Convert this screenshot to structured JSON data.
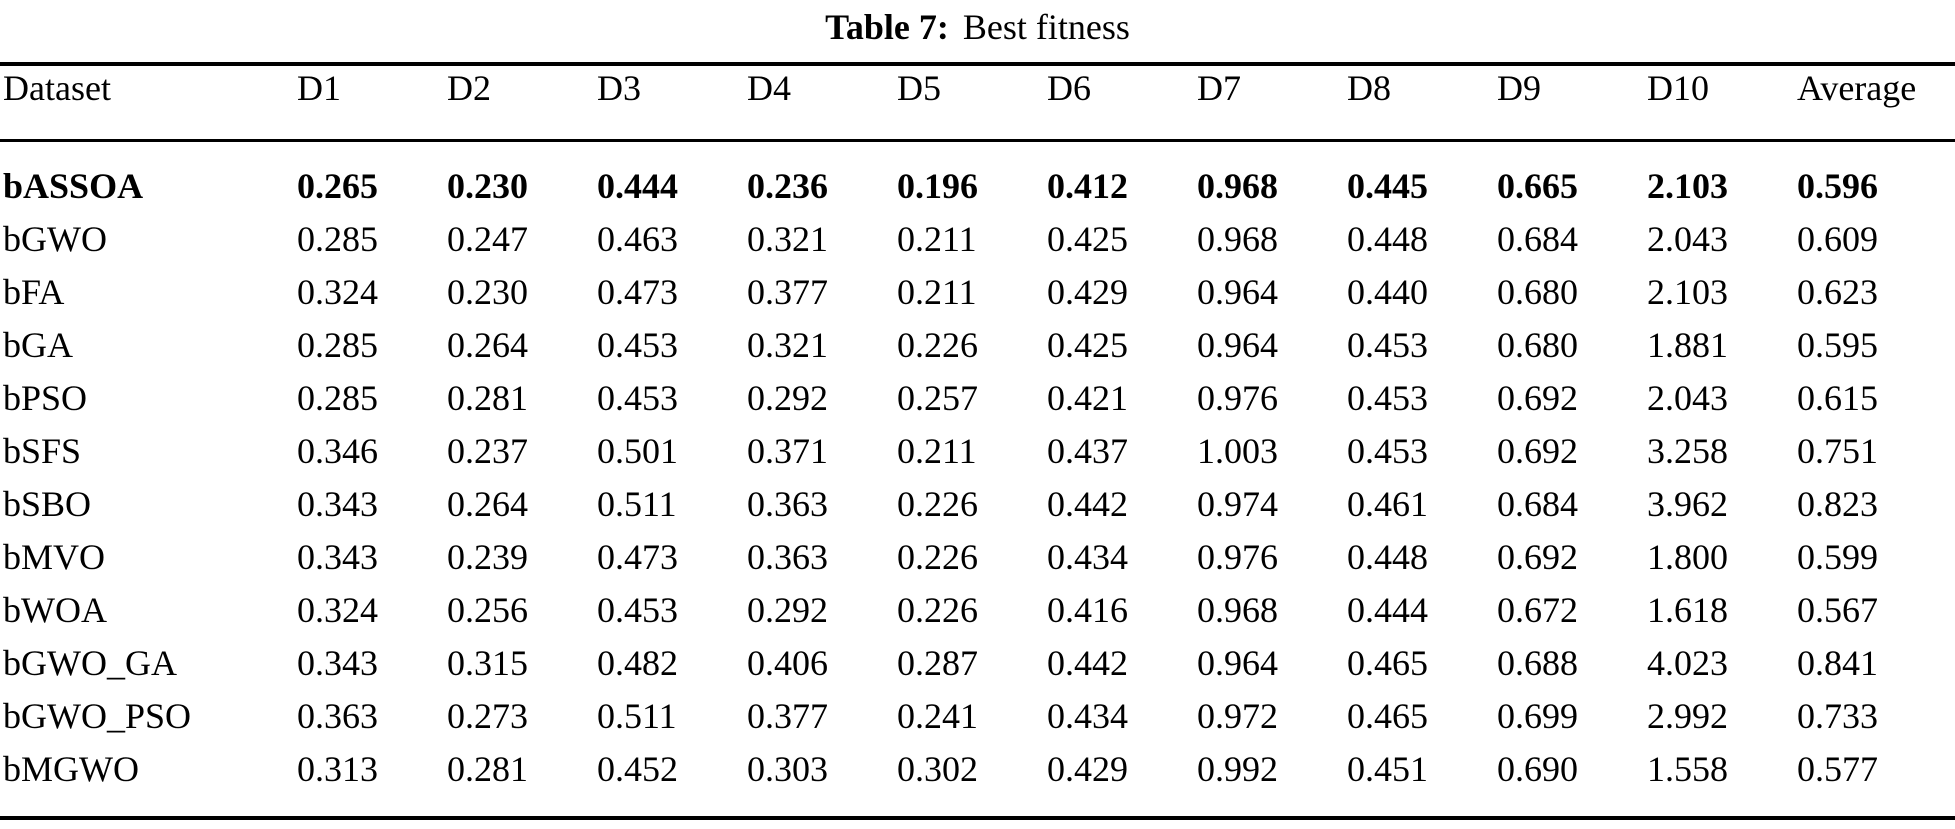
{
  "caption": {
    "label": "Table 7:",
    "text": "Best fitness"
  },
  "colors": {
    "background": "#ffffff",
    "text": "#000000",
    "rule": "#000000"
  },
  "chart_data": {
    "type": "table",
    "title": "Table 7: Best fitness",
    "columns": [
      "Dataset",
      "D1",
      "D2",
      "D3",
      "D4",
      "D5",
      "D6",
      "D7",
      "D8",
      "D9",
      "D10",
      "Average"
    ],
    "rows": [
      {
        "dataset": "bASSOA",
        "bold": true,
        "values": [
          "0.265",
          "0.230",
          "0.444",
          "0.236",
          "0.196",
          "0.412",
          "0.968",
          "0.445",
          "0.665",
          "2.103",
          "0.596"
        ]
      },
      {
        "dataset": "bGWO",
        "bold": false,
        "values": [
          "0.285",
          "0.247",
          "0.463",
          "0.321",
          "0.211",
          "0.425",
          "0.968",
          "0.448",
          "0.684",
          "2.043",
          "0.609"
        ]
      },
      {
        "dataset": "bFA",
        "bold": false,
        "values": [
          "0.324",
          "0.230",
          "0.473",
          "0.377",
          "0.211",
          "0.429",
          "0.964",
          "0.440",
          "0.680",
          "2.103",
          "0.623"
        ]
      },
      {
        "dataset": "bGA",
        "bold": false,
        "values": [
          "0.285",
          "0.264",
          "0.453",
          "0.321",
          "0.226",
          "0.425",
          "0.964",
          "0.453",
          "0.680",
          "1.881",
          "0.595"
        ]
      },
      {
        "dataset": "bPSO",
        "bold": false,
        "values": [
          "0.285",
          "0.281",
          "0.453",
          "0.292",
          "0.257",
          "0.421",
          "0.976",
          "0.453",
          "0.692",
          "2.043",
          "0.615"
        ]
      },
      {
        "dataset": "bSFS",
        "bold": false,
        "values": [
          "0.346",
          "0.237",
          "0.501",
          "0.371",
          "0.211",
          "0.437",
          "1.003",
          "0.453",
          "0.692",
          "3.258",
          "0.751"
        ]
      },
      {
        "dataset": "bSBO",
        "bold": false,
        "values": [
          "0.343",
          "0.264",
          "0.511",
          "0.363",
          "0.226",
          "0.442",
          "0.974",
          "0.461",
          "0.684",
          "3.962",
          "0.823"
        ]
      },
      {
        "dataset": "bMVO",
        "bold": false,
        "values": [
          "0.343",
          "0.239",
          "0.473",
          "0.363",
          "0.226",
          "0.434",
          "0.976",
          "0.448",
          "0.692",
          "1.800",
          "0.599"
        ]
      },
      {
        "dataset": "bWOA",
        "bold": false,
        "values": [
          "0.324",
          "0.256",
          "0.453",
          "0.292",
          "0.226",
          "0.416",
          "0.968",
          "0.444",
          "0.672",
          "1.618",
          "0.567"
        ]
      },
      {
        "dataset": "bGWO_GA",
        "bold": false,
        "values": [
          "0.343",
          "0.315",
          "0.482",
          "0.406",
          "0.287",
          "0.442",
          "0.964",
          "0.465",
          "0.688",
          "4.023",
          "0.841"
        ]
      },
      {
        "dataset": "bGWO_PSO",
        "bold": false,
        "values": [
          "0.363",
          "0.273",
          "0.511",
          "0.377",
          "0.241",
          "0.434",
          "0.972",
          "0.465",
          "0.699",
          "2.992",
          "0.733"
        ]
      },
      {
        "dataset": "bMGWO",
        "bold": false,
        "values": [
          "0.313",
          "0.281",
          "0.452",
          "0.303",
          "0.302",
          "0.429",
          "0.992",
          "0.451",
          "0.690",
          "1.558",
          "0.577"
        ]
      }
    ]
  }
}
